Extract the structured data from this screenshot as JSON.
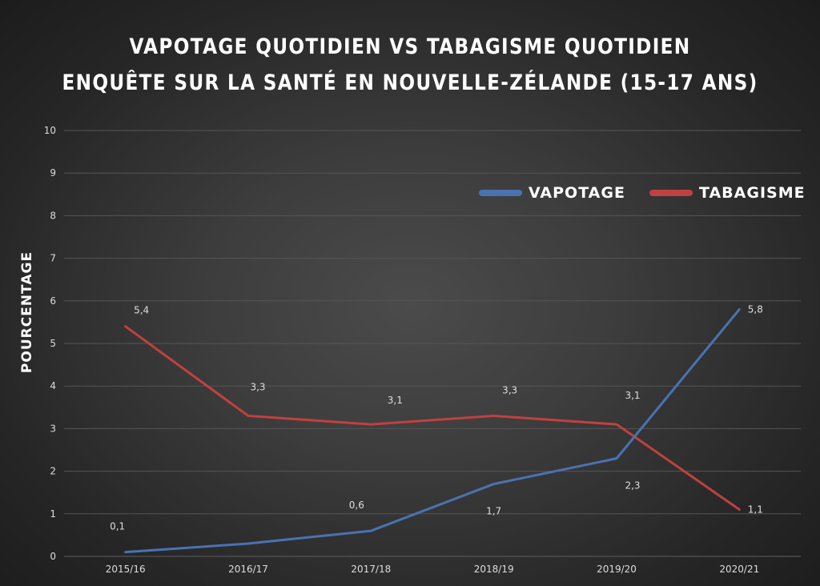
{
  "chart_data": {
    "type": "line",
    "title": "VAPOTAGE QUOTIDIEN VS TABAGISME QUOTIDIEN",
    "subtitle": "ENQUÊTE SUR LA SANTÉ EN NOUVELLE-ZÉLANDE (15-17 ANS)",
    "xlabel": "",
    "ylabel": "POURCENTAGE",
    "categories": [
      "2015/16",
      "2016/17",
      "2017/18",
      "2018/19",
      "2019/20",
      "2020/21"
    ],
    "ylim": [
      0,
      10
    ],
    "yticks": [
      "0",
      "1",
      "2",
      "3",
      "4",
      "5",
      "6",
      "7",
      "8",
      "9",
      "10"
    ],
    "grid": true,
    "legend_position": "top-right",
    "series": [
      {
        "name": "VAPOTAGE",
        "color": "#4a72b2",
        "values": [
          0.1,
          0.3,
          0.6,
          1.7,
          2.3,
          5.8
        ],
        "labels": [
          "0,1",
          "",
          "0,6",
          "1,7",
          "2,3",
          "5,8"
        ]
      },
      {
        "name": "TABAGISME",
        "color": "#c0413f",
        "values": [
          5.4,
          3.3,
          3.1,
          3.3,
          3.1,
          1.1
        ],
        "labels": [
          "5,4",
          "3,3",
          "3,1",
          "3,3",
          "3,1",
          "1,1"
        ]
      }
    ]
  }
}
